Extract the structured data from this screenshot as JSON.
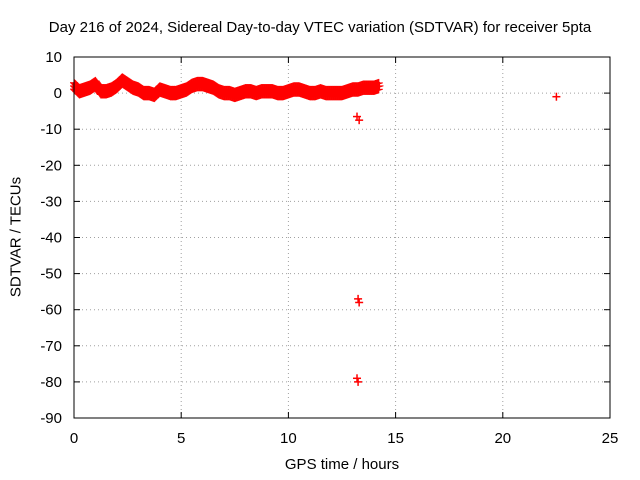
{
  "chart_data": {
    "type": "scatter",
    "title": "Day 216 of 2024, Sidereal Day-to-day VTEC variation (SDTVAR) for receiver 5pta",
    "xlabel": "GPS time / hours",
    "ylabel": "SDTVAR / TECUs",
    "xlim": [
      0,
      25
    ],
    "ylim": [
      -90,
      10
    ],
    "x_ticks": [
      0,
      5,
      10,
      15,
      20,
      25
    ],
    "x_tick_labels": [
      "0",
      "5",
      "10",
      "15",
      "20",
      "25"
    ],
    "y_ticks": [
      10,
      0,
      -10,
      -20,
      -30,
      -40,
      -50,
      -60,
      -70,
      -80,
      -90
    ],
    "y_tick_labels": [
      "10",
      "0",
      "-10",
      "-20",
      "-30",
      "-40",
      "-50",
      "-60",
      "-70",
      "-80",
      "-90"
    ],
    "grid": true,
    "marker": "plus",
    "series": [
      {
        "name": "SDTVAR",
        "color": "#ff0000",
        "x": [
          0,
          0.25,
          0.5,
          0.75,
          1,
          1.25,
          1.5,
          1.75,
          2,
          2.25,
          2.5,
          2.75,
          3,
          3.25,
          3.5,
          3.75,
          4,
          4.25,
          4.5,
          4.75,
          5,
          5.25,
          5.5,
          5.75,
          6,
          6.25,
          6.5,
          6.75,
          7,
          7.25,
          7.5,
          7.75,
          8,
          8.25,
          8.5,
          8.75,
          9,
          9.25,
          9.5,
          9.75,
          10,
          10.25,
          10.5,
          10.75,
          11,
          11.25,
          11.5,
          11.75,
          12,
          12.25,
          12.5,
          12.75,
          13,
          13.25,
          13.5,
          13.75,
          14,
          14.25,
          13.2,
          13.3,
          13.25,
          13.3,
          13.2,
          13.25,
          22.5
        ],
        "y": [
          2,
          0.5,
          1,
          1.5,
          2.5,
          0.5,
          0.5,
          1,
          2,
          3.5,
          2.5,
          1.5,
          1,
          0,
          0,
          -0.5,
          1,
          0.5,
          0,
          0,
          0.5,
          1,
          2,
          2.5,
          2.5,
          2,
          1.5,
          0.5,
          0,
          0,
          -0.5,
          0,
          0.5,
          0.5,
          0,
          0.5,
          0.5,
          0.5,
          0,
          0,
          0.5,
          1,
          1,
          0.5,
          0,
          0,
          0.5,
          0,
          0,
          0,
          0,
          0.5,
          1,
          1,
          1.5,
          1.5,
          1.5,
          2,
          -6.5,
          -7.5,
          -57,
          -58,
          -79,
          -80,
          -1
        ]
      }
    ]
  }
}
